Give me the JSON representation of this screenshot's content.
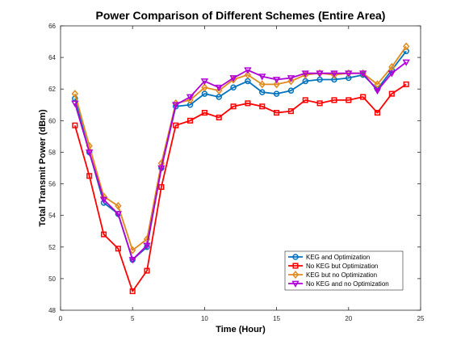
{
  "chart_data": {
    "type": "line",
    "title": "Power Comparison of Different Schemes (Entire Area)",
    "xlabel": "Time (Hour)",
    "ylabel": "Total Transmit Power (dBm)",
    "xlim": [
      0,
      25
    ],
    "ylim": [
      48,
      66
    ],
    "xticks": [
      0,
      5,
      10,
      15,
      20,
      25
    ],
    "yticks": [
      48,
      50,
      52,
      54,
      56,
      58,
      60,
      62,
      64,
      66
    ],
    "grid": false,
    "legend_position": "bottom-right",
    "x": [
      1,
      2,
      3,
      4,
      5,
      6,
      7,
      8,
      9,
      10,
      11,
      12,
      13,
      14,
      15,
      16,
      17,
      18,
      19,
      20,
      21,
      22,
      23,
      24
    ],
    "series": [
      {
        "name": "KEG and Optimization",
        "color": "#0072BD",
        "marker": "circle",
        "values": [
          61.4,
          58.0,
          54.8,
          54.1,
          51.2,
          52.0,
          57.0,
          60.9,
          61.0,
          61.7,
          61.5,
          62.1,
          62.5,
          61.8,
          61.7,
          61.9,
          62.5,
          62.6,
          62.6,
          62.7,
          62.9,
          62.0,
          63.2,
          64.4
        ]
      },
      {
        "name": "No KEG but Optimization",
        "color": "#FF0000",
        "marker": "square",
        "values": [
          59.7,
          56.5,
          52.8,
          51.9,
          49.2,
          50.5,
          55.8,
          59.7,
          60.0,
          60.5,
          60.2,
          60.9,
          61.1,
          60.9,
          60.5,
          60.6,
          61.3,
          61.1,
          61.3,
          61.3,
          61.5,
          60.5,
          61.7,
          62.3
        ]
      },
      {
        "name": "KEG but no Optimization",
        "color": "#E08A1E",
        "marker": "diamond",
        "values": [
          61.7,
          58.4,
          55.2,
          54.6,
          51.8,
          52.5,
          57.3,
          61.1,
          61.3,
          62.1,
          61.9,
          62.6,
          62.9,
          62.3,
          62.3,
          62.5,
          62.9,
          63.0,
          62.9,
          63.0,
          63.0,
          62.3,
          63.4,
          64.7
        ]
      },
      {
        "name": "No KEG and no Optimization",
        "color": "#B000D8",
        "marker": "triangle-down",
        "values": [
          61.1,
          58.0,
          55.0,
          54.1,
          51.2,
          52.1,
          57.0,
          61.0,
          61.5,
          62.5,
          62.1,
          62.7,
          63.2,
          62.8,
          62.6,
          62.7,
          63.0,
          63.0,
          63.0,
          63.0,
          63.0,
          61.9,
          63.0,
          63.7
        ]
      }
    ]
  }
}
